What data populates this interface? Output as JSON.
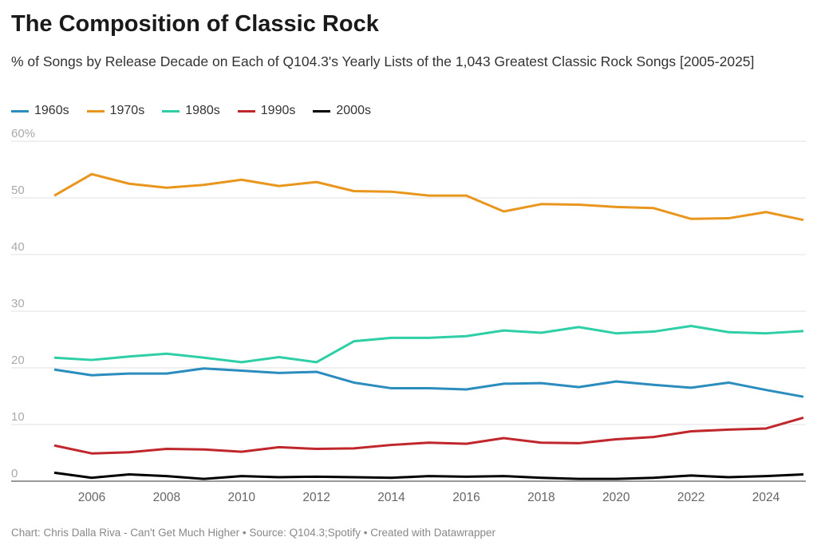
{
  "title": "The Composition of Classic Rock",
  "subtitle": "% of Songs by Release Decade on Each of Q104.3's Yearly Lists of the 1,043 Greatest Classic Rock Songs [2005-2025]",
  "footer": "Chart: Chris Dalla Riva - Can't Get Much Higher • Source: Q104.3;Spotify • Created with Datawrapper",
  "chart_data": {
    "type": "line",
    "x": [
      2005,
      2006,
      2007,
      2008,
      2009,
      2010,
      2011,
      2012,
      2013,
      2014,
      2015,
      2016,
      2017,
      2018,
      2019,
      2020,
      2021,
      2022,
      2023,
      2024,
      2025
    ],
    "xticks": [
      "2006",
      "2008",
      "2010",
      "2012",
      "2014",
      "2016",
      "2018",
      "2020",
      "2022",
      "2024"
    ],
    "yticks": [
      "0",
      "10",
      "20",
      "30",
      "40",
      "50",
      "60%"
    ],
    "ylim": [
      0,
      60
    ],
    "grid": true,
    "legend": "top-left",
    "series": [
      {
        "name": "1960s",
        "color": "#2b8cbe",
        "values": [
          19.7,
          18.7,
          19.0,
          19.0,
          19.9,
          19.5,
          19.1,
          19.3,
          17.4,
          16.4,
          16.4,
          16.2,
          17.2,
          17.3,
          16.6,
          17.6,
          17.0,
          16.5,
          17.4,
          16.1,
          14.9
        ]
      },
      {
        "name": "1970s",
        "color": "#e8961e",
        "values": [
          50.4,
          54.2,
          52.5,
          51.8,
          52.3,
          53.2,
          52.1,
          52.8,
          51.2,
          51.1,
          50.4,
          50.4,
          47.6,
          48.9,
          48.8,
          48.4,
          48.2,
          46.3,
          46.4,
          47.5,
          46.1
        ]
      },
      {
        "name": "1980s",
        "color": "#2ecfa6",
        "values": [
          21.8,
          21.4,
          22.0,
          22.5,
          21.8,
          21.0,
          21.9,
          21.0,
          24.7,
          25.3,
          25.3,
          25.6,
          26.6,
          26.2,
          27.2,
          26.1,
          26.4,
          27.4,
          26.3,
          26.1,
          26.5
        ]
      },
      {
        "name": "1990s",
        "color": "#c0272d",
        "values": [
          6.3,
          4.9,
          5.1,
          5.7,
          5.6,
          5.2,
          6.0,
          5.7,
          5.8,
          6.4,
          6.8,
          6.6,
          7.6,
          6.8,
          6.7,
          7.4,
          7.8,
          8.8,
          9.1,
          9.3,
          11.2
        ]
      },
      {
        "name": "2000s",
        "color": "#000000",
        "values": [
          1.5,
          0.6,
          1.2,
          0.9,
          0.4,
          0.9,
          0.7,
          0.8,
          0.7,
          0.6,
          0.9,
          0.8,
          0.9,
          0.6,
          0.4,
          0.4,
          0.6,
          1.0,
          0.7,
          0.9,
          1.2
        ]
      }
    ]
  }
}
